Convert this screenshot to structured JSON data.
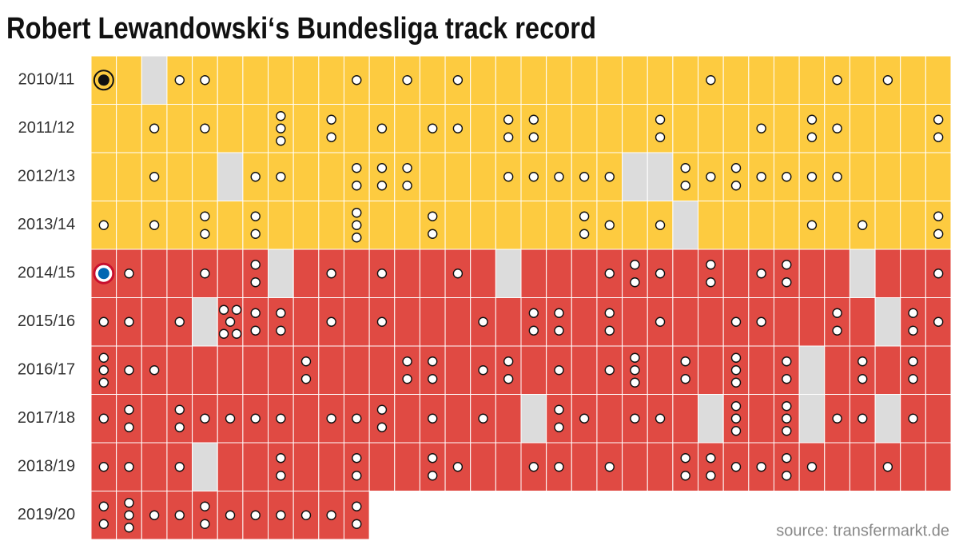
{
  "chart_data": {
    "type": "dot-grid",
    "title": "Robert Lewandowski‘s Bundesliga track record",
    "source": "source: transfermarkt.de",
    "categories": [
      "2010/11",
      "2011/12",
      "2012/13",
      "2013/14",
      "2014/15",
      "2015/16",
      "2016/17",
      "2017/18",
      "2018/19",
      "2019/20"
    ],
    "row_colors": [
      "#fdcb40",
      "#fdcb40",
      "#fdcb40",
      "#fdcb40",
      "#e04a43",
      "#e04a43",
      "#e04a43",
      "#e04a43",
      "#e04a43",
      "#e04a43"
    ],
    "missed_color": "#dcdcdc",
    "values": [
      [
        0,
        0,
        null,
        1,
        1,
        0,
        0,
        0,
        0,
        0,
        1,
        0,
        1,
        0,
        1,
        0,
        0,
        0,
        0,
        0,
        0,
        0,
        0,
        0,
        1,
        0,
        0,
        0,
        0,
        1,
        0,
        1,
        0,
        0
      ],
      [
        0,
        0,
        1,
        0,
        1,
        0,
        0,
        3,
        0,
        2,
        0,
        1,
        0,
        1,
        1,
        0,
        2,
        2,
        0,
        0,
        0,
        0,
        2,
        0,
        0,
        0,
        1,
        0,
        2,
        1,
        0,
        0,
        0,
        2
      ],
      [
        0,
        0,
        1,
        0,
        0,
        null,
        1,
        1,
        0,
        0,
        2,
        2,
        2,
        0,
        0,
        0,
        1,
        1,
        1,
        1,
        1,
        null,
        null,
        2,
        1,
        2,
        1,
        1,
        1,
        1,
        0,
        0,
        0,
        0
      ],
      [
        1,
        0,
        1,
        0,
        2,
        0,
        2,
        0,
        0,
        0,
        3,
        0,
        0,
        2,
        0,
        0,
        0,
        0,
        0,
        2,
        1,
        0,
        1,
        null,
        0,
        0,
        0,
        0,
        1,
        0,
        1,
        0,
        0,
        2
      ],
      [
        0,
        1,
        0,
        0,
        1,
        0,
        2,
        null,
        0,
        1,
        0,
        1,
        0,
        0,
        1,
        0,
        null,
        0,
        0,
        0,
        1,
        2,
        1,
        0,
        2,
        0,
        1,
        2,
        0,
        0,
        null,
        0,
        0,
        1
      ],
      [
        1,
        1,
        0,
        1,
        null,
        5,
        2,
        2,
        0,
        1,
        0,
        1,
        0,
        0,
        0,
        1,
        0,
        2,
        2,
        0,
        2,
        0,
        1,
        0,
        0,
        1,
        1,
        0,
        0,
        2,
        0,
        null,
        2,
        1
      ],
      [
        3,
        1,
        1,
        0,
        0,
        0,
        0,
        0,
        2,
        0,
        0,
        0,
        2,
        2,
        0,
        1,
        2,
        0,
        1,
        0,
        1,
        3,
        0,
        2,
        0,
        3,
        0,
        2,
        null,
        0,
        2,
        0,
        2,
        0
      ],
      [
        1,
        2,
        0,
        2,
        1,
        1,
        1,
        1,
        0,
        1,
        1,
        2,
        0,
        1,
        0,
        1,
        0,
        null,
        2,
        1,
        0,
        1,
        1,
        0,
        null,
        3,
        0,
        3,
        null,
        1,
        1,
        null,
        1,
        0
      ],
      [
        1,
        1,
        0,
        1,
        null,
        0,
        0,
        2,
        0,
        0,
        2,
        0,
        0,
        2,
        1,
        0,
        0,
        1,
        1,
        0,
        1,
        0,
        0,
        2,
        2,
        1,
        1,
        2,
        1,
        0,
        0,
        1,
        0,
        0
      ],
      [
        2,
        3,
        1,
        1,
        2,
        1,
        1,
        1,
        1,
        1,
        2
      ]
    ]
  }
}
